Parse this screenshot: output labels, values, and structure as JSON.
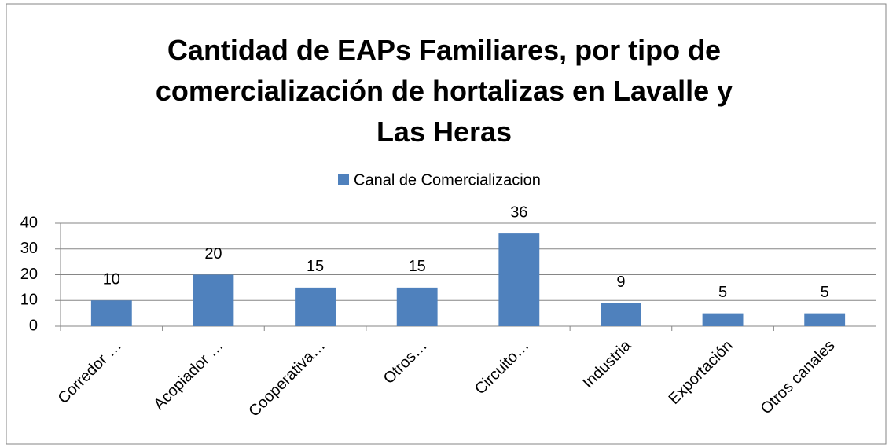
{
  "chart_data": {
    "type": "bar",
    "title": "Cantidad de EAPs Familiares, por tipo de comercialización de hortalizas en Lavalle y Las Heras",
    "categories": [
      "Corredor …",
      "Acopiador …",
      "Cooperativa…",
      "Otros…",
      "Circuito…",
      "Industria",
      "Exportación",
      "Otros canales"
    ],
    "series": [
      {
        "name": "Canal de Comercializacion",
        "color": "#4f81bd",
        "values": [
          10,
          20,
          15,
          15,
          36,
          9,
          5,
          5
        ]
      }
    ],
    "ylim": [
      0,
      40
    ],
    "yticks": [
      0,
      10,
      20,
      30,
      40
    ],
    "grid": true,
    "legend": "top",
    "data_labels": true
  }
}
